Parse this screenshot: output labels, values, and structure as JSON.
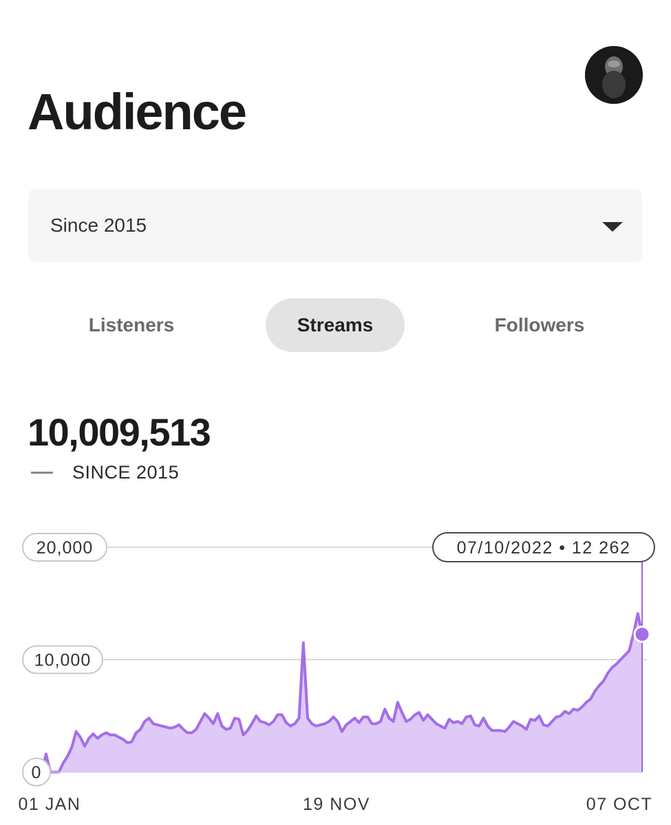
{
  "header": {
    "title": "Audience"
  },
  "range_select": {
    "value": "Since 2015"
  },
  "tabs": [
    {
      "label": "Listeners",
      "active": false
    },
    {
      "label": "Streams",
      "active": true
    },
    {
      "label": "Followers",
      "active": false
    }
  ],
  "summary": {
    "total": "10,009,513",
    "period_label": "SINCE 2015"
  },
  "tooltip": {
    "text": "07/10/2022 • 12 262"
  },
  "colors": {
    "accent_line": "#a46ee8",
    "accent_fill": "#dfc9f6"
  },
  "chart_data": {
    "type": "area",
    "title": "",
    "xlabel": "",
    "ylabel": "",
    "ylim": [
      0,
      20000
    ],
    "y_ticks": [
      "0",
      "10,000",
      "20,000"
    ],
    "x_tick_labels": [
      "01 JAN",
      "19 NOV",
      "07 OCT"
    ],
    "grid": true,
    "highlight": {
      "date": "07/10/2022",
      "value": 12262
    },
    "series": [
      {
        "values": [
          800,
          0,
          400,
          0,
          1600,
          0,
          0,
          0,
          800,
          1400,
          2200,
          3600,
          3100,
          2300,
          3000,
          3400,
          3000,
          3300,
          3500,
          3300,
          3300,
          3100,
          2900,
          2600,
          2700,
          3500,
          3800,
          4500,
          4800,
          4300,
          4200,
          4100,
          4000,
          3900,
          4000,
          4200,
          3800,
          3500,
          3500,
          3800,
          4500,
          5200,
          4800,
          4300,
          5200,
          4100,
          3800,
          3900,
          4800,
          4700,
          3300,
          3700,
          4300,
          5000,
          4500,
          4400,
          4200,
          4500,
          5100,
          5100,
          4400,
          4100,
          4300,
          4800,
          11500,
          4800,
          4300,
          4100,
          4200,
          4300,
          4500,
          4900,
          4500,
          3600,
          4200,
          4500,
          4800,
          4400,
          4900,
          4900,
          4300,
          4300,
          4500,
          5600,
          4800,
          4500,
          6200,
          5300,
          4500,
          4700,
          5100,
          5300,
          4600,
          5100,
          4700,
          4300,
          4100,
          3900,
          4700,
          4400,
          4500,
          4300,
          4900,
          5000,
          4200,
          4100,
          4800,
          4100,
          3700,
          3700,
          3700,
          3600,
          4000,
          4500,
          4300,
          4100,
          3800,
          4700,
          4600,
          5000,
          4200,
          4100,
          4500,
          4900,
          5000,
          5400,
          5200,
          5600,
          5500,
          5800,
          6200,
          6500,
          7200,
          7700,
          8100,
          8800,
          9300,
          9600,
          10000,
          10400,
          10800,
          12300,
          14100,
          12262
        ]
      }
    ]
  }
}
